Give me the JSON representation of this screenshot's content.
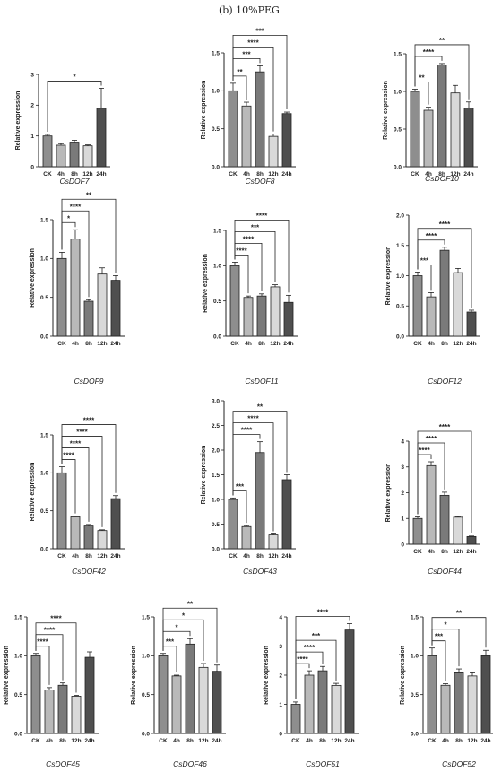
{
  "figure_title": "(b)  10%PEG",
  "chart_data": [
    {
      "type": "bar",
      "gene": "CsDOF7",
      "ylabel": "Relative expression",
      "categories": [
        "CK",
        "4h",
        "8h",
        "12h",
        "24h"
      ],
      "values": [
        1.0,
        0.7,
        0.8,
        0.68,
        1.9
      ],
      "errors": [
        0.05,
        0.05,
        0.06,
        0.03,
        0.65
      ],
      "ylim": [
        0,
        3
      ],
      "yticks": [
        "0",
        "1",
        "2",
        "3"
      ],
      "sig": [
        {
          "to": "24h",
          "label": "*"
        }
      ]
    },
    {
      "type": "bar",
      "gene": "CsDOF8",
      "ylabel": "Relative expression",
      "categories": [
        "CK",
        "4h",
        "8h",
        "12h",
        "24h"
      ],
      "values": [
        1.0,
        0.8,
        1.25,
        0.4,
        0.7
      ],
      "errors": [
        0.1,
        0.05,
        0.08,
        0.03,
        0.02
      ],
      "ylim": [
        0,
        1.5
      ],
      "yticks": [
        "0.0",
        "0.5",
        "1.0",
        "1.5"
      ],
      "sig": [
        {
          "to": "4h",
          "label": "**"
        },
        {
          "to": "8h",
          "label": "***"
        },
        {
          "to": "12h",
          "label": "****"
        },
        {
          "to": "24h",
          "label": "***"
        }
      ]
    },
    {
      "type": "bar",
      "gene": "CsDOF10",
      "ylabel": "Relative expression",
      "categories": [
        "CK",
        "4h",
        "8h",
        "12h",
        "24h"
      ],
      "values": [
        1.0,
        0.75,
        1.35,
        0.98,
        0.78
      ],
      "errors": [
        0.03,
        0.04,
        0.02,
        0.1,
        0.08
      ],
      "ylim": [
        0,
        1.5
      ],
      "yticks": [
        "0.0",
        "0.5",
        "1.0",
        "1.5"
      ],
      "sig": [
        {
          "to": "4h",
          "label": "**"
        },
        {
          "to": "8h",
          "label": "****"
        },
        {
          "to": "24h",
          "label": "**"
        }
      ]
    },
    {
      "type": "bar",
      "gene": "CsDOF9",
      "ylabel": "Relative expression",
      "categories": [
        "CK",
        "4h",
        "8h",
        "12h",
        "24h"
      ],
      "values": [
        1.0,
        1.25,
        0.45,
        0.8,
        0.72
      ],
      "errors": [
        0.08,
        0.12,
        0.02,
        0.08,
        0.06
      ],
      "ylim": [
        0,
        1.5
      ],
      "yticks": [
        "0.0",
        "0.5",
        "1.0",
        "1.5"
      ],
      "sig": [
        {
          "to": "4h",
          "label": "*"
        },
        {
          "to": "8h",
          "label": "****"
        },
        {
          "to": "24h",
          "label": "**"
        }
      ]
    },
    {
      "type": "bar",
      "gene": "CsDOF11",
      "ylabel": "Relative expression",
      "categories": [
        "CK",
        "4h",
        "8h",
        "12h",
        "24h"
      ],
      "values": [
        1.0,
        0.55,
        0.57,
        0.7,
        0.48
      ],
      "errors": [
        0.05,
        0.02,
        0.03,
        0.03,
        0.1
      ],
      "ylim": [
        0,
        1.5
      ],
      "yticks": [
        "0.0",
        "0.5",
        "1.0",
        "1.5"
      ],
      "sig": [
        {
          "to": "4h",
          "label": "****"
        },
        {
          "to": "8h",
          "label": "****"
        },
        {
          "to": "12h",
          "label": "***"
        },
        {
          "to": "24h",
          "label": "****"
        }
      ]
    },
    {
      "type": "bar",
      "gene": "CsDOF12",
      "ylabel": "Relative expression",
      "categories": [
        "CK",
        "4h",
        "8h",
        "12h",
        "24h"
      ],
      "values": [
        1.0,
        0.65,
        1.42,
        1.05,
        0.4
      ],
      "errors": [
        0.06,
        0.07,
        0.05,
        0.07,
        0.03
      ],
      "ylim": [
        0,
        2.0
      ],
      "yticks": [
        "0.0",
        "0.5",
        "1.0",
        "1.5",
        "2.0"
      ],
      "sig": [
        {
          "to": "4h",
          "label": "***"
        },
        {
          "to": "8h",
          "label": "****"
        },
        {
          "to": "24h",
          "label": "****"
        }
      ]
    },
    {
      "type": "bar",
      "gene": "CsDOF42",
      "ylabel": "Relative expression",
      "categories": [
        "CK",
        "4h",
        "8h",
        "12h",
        "24h"
      ],
      "values": [
        1.0,
        0.42,
        0.3,
        0.24,
        0.66
      ],
      "errors": [
        0.08,
        0.01,
        0.02,
        0.01,
        0.04
      ],
      "ylim": [
        0,
        1.5
      ],
      "yticks": [
        "0.0",
        "0.5",
        "1.0",
        "1.5"
      ],
      "sig": [
        {
          "to": "4h",
          "label": "****"
        },
        {
          "to": "8h",
          "label": "****"
        },
        {
          "to": "12h",
          "label": "****"
        },
        {
          "to": "24h",
          "label": "****"
        }
      ]
    },
    {
      "type": "bar",
      "gene": "CsDOF43",
      "ylabel": "Relative expression",
      "categories": [
        "CK",
        "4h",
        "8h",
        "12h",
        "24h"
      ],
      "values": [
        1.0,
        0.45,
        1.95,
        0.28,
        1.4
      ],
      "errors": [
        0.03,
        0.02,
        0.22,
        0.02,
        0.1
      ],
      "ylim": [
        0,
        3.0
      ],
      "yticks": [
        "0.0",
        "0.5",
        "1.0",
        "1.5",
        "2.0",
        "2.5",
        "3.0"
      ],
      "sig": [
        {
          "to": "4h",
          "label": "***"
        },
        {
          "to": "8h",
          "label": "****"
        },
        {
          "to": "12h",
          "label": "****"
        },
        {
          "to": "24h",
          "label": "**"
        }
      ]
    },
    {
      "type": "bar",
      "gene": "CsDOF44",
      "ylabel": "Relative expression",
      "categories": [
        "CK",
        "4h",
        "8h",
        "12h",
        "24h"
      ],
      "values": [
        1.0,
        3.05,
        1.9,
        1.05,
        0.3
      ],
      "errors": [
        0.06,
        0.15,
        0.12,
        0.03,
        0.02
      ],
      "ylim": [
        0,
        4
      ],
      "yticks": [
        "0",
        "1",
        "2",
        "3",
        "4"
      ],
      "sig": [
        {
          "to": "4h",
          "label": "****"
        },
        {
          "to": "8h",
          "label": "****"
        },
        {
          "to": "24h",
          "label": "****"
        }
      ]
    },
    {
      "type": "bar",
      "gene": "CsDOF45",
      "ylabel": "Relative expression",
      "categories": [
        "CK",
        "4h",
        "8h",
        "12h",
        "24h"
      ],
      "values": [
        1.0,
        0.56,
        0.62,
        0.48,
        0.98
      ],
      "errors": [
        0.03,
        0.03,
        0.03,
        0.01,
        0.07
      ],
      "ylim": [
        0,
        1.5
      ],
      "yticks": [
        "0.0",
        "0.5",
        "1.0",
        "1.5"
      ],
      "sig": [
        {
          "to": "4h",
          "label": "****"
        },
        {
          "to": "8h",
          "label": "****"
        },
        {
          "to": "12h",
          "label": "****"
        }
      ]
    },
    {
      "type": "bar",
      "gene": "CsDOF46",
      "ylabel": "Relative expression",
      "categories": [
        "CK",
        "4h",
        "8h",
        "12h",
        "24h"
      ],
      "values": [
        1.0,
        0.74,
        1.15,
        0.85,
        0.8
      ],
      "errors": [
        0.03,
        0.01,
        0.07,
        0.05,
        0.08
      ],
      "ylim": [
        0,
        1.5
      ],
      "yticks": [
        "0.0",
        "0.5",
        "1.0",
        "1.5"
      ],
      "sig": [
        {
          "to": "4h",
          "label": "***"
        },
        {
          "to": "8h",
          "label": "*"
        },
        {
          "to": "12h",
          "label": "*"
        },
        {
          "to": "24h",
          "label": "**"
        }
      ]
    },
    {
      "type": "bar",
      "gene": "CsDOF51",
      "ylabel": "Relative expression",
      "categories": [
        "CK",
        "4h",
        "8h",
        "12h",
        "24h"
      ],
      "values": [
        1.0,
        2.0,
        2.15,
        1.65,
        3.55
      ],
      "errors": [
        0.08,
        0.15,
        0.15,
        0.07,
        0.22
      ],
      "ylim": [
        0,
        4
      ],
      "yticks": [
        "0",
        "1",
        "2",
        "3",
        "4"
      ],
      "sig": [
        {
          "to": "4h",
          "label": "****"
        },
        {
          "to": "8h",
          "label": "****"
        },
        {
          "to": "12h",
          "label": "***"
        },
        {
          "to": "24h",
          "label": "****"
        }
      ]
    },
    {
      "type": "bar",
      "gene": "CsDOF52",
      "ylabel": "Relative expression",
      "categories": [
        "CK",
        "4h",
        "8h",
        "12h",
        "24h"
      ],
      "values": [
        1.0,
        0.62,
        0.78,
        0.74,
        1.0
      ],
      "errors": [
        0.1,
        0.02,
        0.05,
        0.04,
        0.07
      ],
      "ylim": [
        0,
        1.5
      ],
      "yticks": [
        "0.0",
        "0.5",
        "1.0",
        "1.5"
      ],
      "sig": [
        {
          "to": "4h",
          "label": "***"
        },
        {
          "to": "8h",
          "label": "*"
        },
        {
          "to": "24h",
          "label": "**"
        }
      ]
    }
  ],
  "colors": {
    "CK": "#8e8e8e",
    "4h": "#b9b9b9",
    "8h": "#7a7a7a",
    "12h": "#d9d9d9",
    "24h": "#4f4f4f"
  }
}
